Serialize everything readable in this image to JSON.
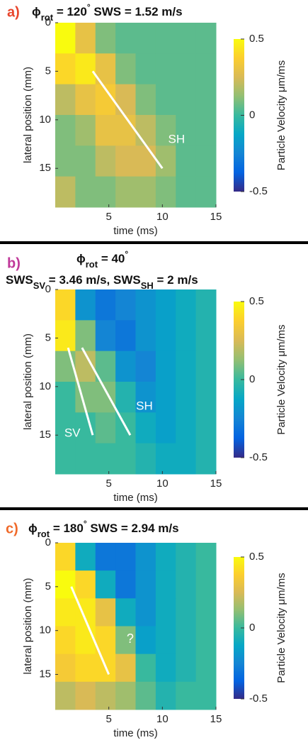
{
  "chart_data": [
    {
      "type": "heatmap",
      "panel_label": "a)",
      "panel_color": "#e8452c",
      "title_lines": [
        [
          {
            "text": "ϕ"
          },
          {
            "text": "rot",
            "sub": true
          },
          {
            "text": " = 120"
          },
          {
            "text": "°",
            "sup": true
          },
          {
            "text": " SWS = 1.52 m/s"
          }
        ]
      ],
      "x_label": "time (ms)",
      "y_label": "lateral position (mm)",
      "colorbar_label": "Particle Velocity μm/ms",
      "xlim": [
        0,
        15
      ],
      "xticks": [
        5,
        10,
        15
      ],
      "ylim": [
        0,
        19
      ],
      "yticks": [
        0,
        5,
        10,
        15
      ],
      "y_reversed": true,
      "zlim": [
        -0.5,
        0.5
      ],
      "zticks": [
        -0.5,
        0,
        0.5
      ],
      "z": [
        [
          0.5,
          0.3,
          0.1,
          0.05,
          0.05,
          0.05,
          0.05,
          0.05
        ],
        [
          0.4,
          0.45,
          0.3,
          0.1,
          0.05,
          0.05,
          0.05,
          0.05
        ],
        [
          0.2,
          0.3,
          0.35,
          0.25,
          0.1,
          0.05,
          0.05,
          0.05
        ],
        [
          0.1,
          0.15,
          0.3,
          0.3,
          0.2,
          0.1,
          0.05,
          0.05
        ],
        [
          0.1,
          0.1,
          0.2,
          0.25,
          0.25,
          0.15,
          0.05,
          0.05
        ],
        [
          0.2,
          0.1,
          0.1,
          0.15,
          0.15,
          0.1,
          0.05,
          0.05
        ]
      ],
      "fit_lines": [
        {
          "label": "SH",
          "x": [
            3.5,
            10
          ],
          "y": [
            5,
            15
          ]
        }
      ]
    },
    {
      "type": "heatmap",
      "panel_label": "b)",
      "panel_color": "#c0399a",
      "title_lines": [
        [
          {
            "text": "ϕ"
          },
          {
            "text": "rot",
            "sub": true
          },
          {
            "text": " = 40"
          },
          {
            "text": "°",
            "sup": true
          }
        ],
        [
          {
            "text": "SWS"
          },
          {
            "text": "SV",
            "sub": true
          },
          {
            "text": " = 3.46 m/s, SWS"
          },
          {
            "text": "SH",
            "sub": true
          },
          {
            "text": " = 2 m/s"
          }
        ]
      ],
      "x_label": "time (ms)",
      "y_label": "lateral position (mm)",
      "colorbar_label": "Particle Velocity μm/ms",
      "xlim": [
        0,
        15
      ],
      "xticks": [
        5,
        10,
        15
      ],
      "ylim": [
        0,
        19
      ],
      "yticks": [
        0,
        5,
        10,
        15
      ],
      "y_reversed": true,
      "zlim": [
        -0.5,
        0.5
      ],
      "zticks": [
        -0.5,
        0,
        0.5
      ],
      "z": [
        [
          0.4,
          -0.2,
          -0.3,
          -0.25,
          -0.2,
          -0.15,
          -0.1,
          -0.05
        ],
        [
          0.45,
          0.1,
          -0.25,
          -0.3,
          -0.2,
          -0.15,
          -0.1,
          -0.05
        ],
        [
          0.1,
          0.2,
          0.05,
          -0.2,
          -0.25,
          -0.15,
          -0.1,
          -0.05
        ],
        [
          0,
          0.1,
          0.1,
          -0.05,
          -0.2,
          -0.15,
          -0.1,
          -0.05
        ],
        [
          0,
          0,
          0.05,
          0,
          -0.1,
          -0.15,
          -0.1,
          -0.05
        ],
        [
          0,
          0,
          0,
          0,
          -0.05,
          -0.1,
          -0.1,
          -0.05
        ]
      ],
      "fit_lines": [
        {
          "label": "SV",
          "x": [
            1.2,
            3.5
          ],
          "y": [
            6,
            15
          ]
        },
        {
          "label": "SH",
          "x": [
            2.5,
            7
          ],
          "y": [
            6,
            15
          ]
        }
      ]
    },
    {
      "type": "heatmap",
      "panel_label": "c)",
      "panel_color": "#f06a2a",
      "title_lines": [
        [
          {
            "text": "ϕ"
          },
          {
            "text": "rot",
            "sub": true
          },
          {
            "text": " = 180"
          },
          {
            "text": "°",
            "sup": true
          },
          {
            "text": " SWS = 2.94 m/s"
          }
        ]
      ],
      "x_label": "time (ms)",
      "y_label": "lateral position (mm)",
      "colorbar_label": "Particle Velocity μm/ms",
      "xlim": [
        0,
        15
      ],
      "xticks": [
        5,
        10,
        15
      ],
      "ylim": [
        0,
        19
      ],
      "yticks": [
        0,
        5,
        10,
        15
      ],
      "y_reversed": true,
      "zlim": [
        -0.5,
        0.5
      ],
      "zticks": [
        -0.5,
        0,
        0.5
      ],
      "z": [
        [
          0.4,
          -0.1,
          -0.3,
          -0.3,
          -0.2,
          -0.1,
          -0.05,
          0
        ],
        [
          0.5,
          0.4,
          -0.1,
          -0.3,
          -0.2,
          -0.1,
          -0.05,
          0
        ],
        [
          0.45,
          0.45,
          0.3,
          -0.1,
          -0.2,
          -0.1,
          -0.05,
          0
        ],
        [
          0.4,
          0.45,
          0.4,
          0.1,
          -0.15,
          -0.1,
          -0.05,
          0
        ],
        [
          0.35,
          0.4,
          0.4,
          0.3,
          0,
          -0.1,
          -0.05,
          0
        ],
        [
          0.2,
          0.25,
          0.2,
          0.15,
          0.05,
          -0.05,
          0,
          0
        ]
      ],
      "fit_lines": [
        {
          "x": [
            1.5,
            5
          ],
          "y": [
            5,
            15
          ]
        }
      ],
      "annotation": "?"
    }
  ]
}
